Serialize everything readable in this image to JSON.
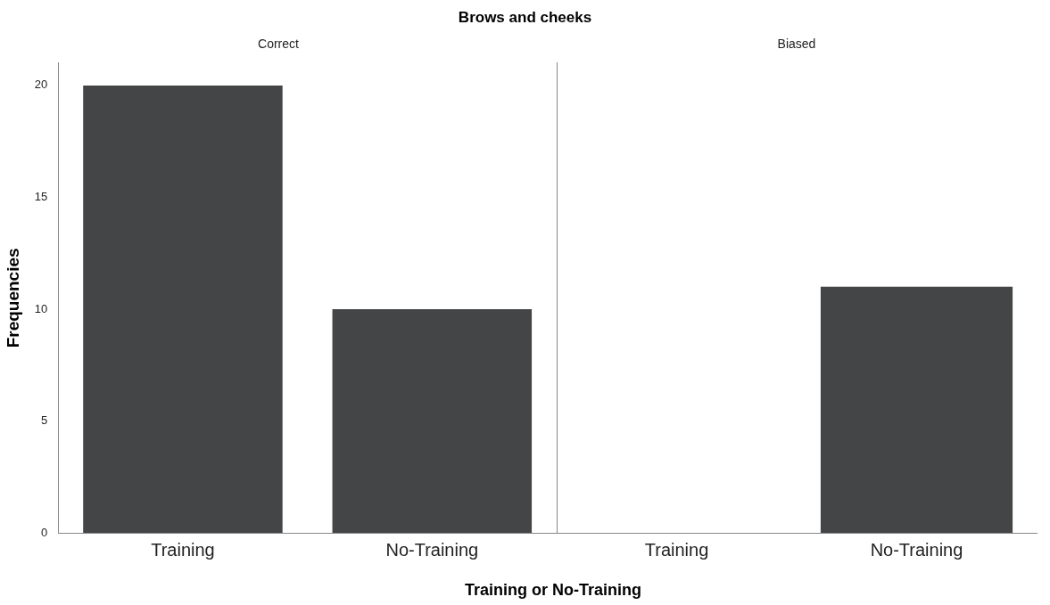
{
  "chart_data": [
    {
      "type": "bar",
      "title": "Brows and cheeks",
      "subtitle": "Correct",
      "xlabel": "Training or No-Training",
      "ylabel": "Frequencies",
      "categories": [
        "Training",
        "No-Training"
      ],
      "values": [
        20,
        10
      ],
      "color": "#434546",
      "ylim": [
        0,
        21
      ],
      "yticks": [
        0,
        5,
        10,
        15,
        20
      ],
      "grid": false,
      "legend": false
    },
    {
      "type": "bar",
      "subtitle": "Biased",
      "categories": [
        "Training",
        "No-Training"
      ],
      "values": [
        0,
        11
      ],
      "color": "#434546",
      "ylim": [
        0,
        21
      ],
      "yticks": [
        0,
        5,
        10,
        15,
        20
      ],
      "grid": false,
      "legend": false,
      "tick_labels": "x"
    }
  ]
}
